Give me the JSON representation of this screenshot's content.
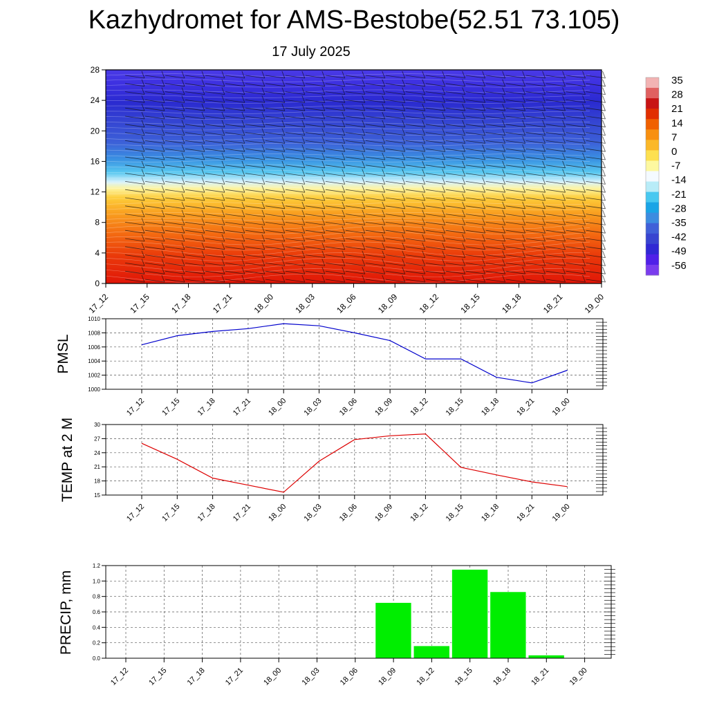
{
  "header": {
    "title": "Kazhydromet for AMS-Bestobe(52.51 73.105)",
    "date": "17 July 2025"
  },
  "time_labels": [
    "17_12",
    "17_15",
    "17_18",
    "17_21",
    "18_00",
    "18_03",
    "18_06",
    "18_09",
    "18_12",
    "18_15",
    "18_18",
    "18_21",
    "19_00"
  ],
  "colors": {
    "pmsl_line": "#0000cc",
    "temp_line": "#dd0000",
    "precip_bar": "#00ee00"
  },
  "chart_data": [
    {
      "type": "heatmap",
      "name": "cross-section",
      "x": [
        "17_12",
        "17_15",
        "17_18",
        "17_21",
        "18_00",
        "18_03",
        "18_06",
        "18_09",
        "18_12",
        "18_15",
        "18_18",
        "18_21",
        "19_00"
      ],
      "yticks": [
        0,
        4,
        8,
        12,
        16,
        20,
        24,
        28
      ],
      "ylim": [
        0,
        28
      ],
      "colorbar": {
        "ticks": [
          35,
          28,
          21,
          14,
          7,
          0,
          -7,
          -14,
          -21,
          -28,
          -35,
          -42,
          -49,
          -56
        ],
        "colors": [
          "#f2b3b3",
          "#e06060",
          "#c81414",
          "#e12e00",
          "#f06000",
          "#f89010",
          "#fbb828",
          "#fde050",
          "#fdf8a0",
          "#f4faff",
          "#b8ecf8",
          "#48c8f0",
          "#1aa4e6",
          "#3c8ce0",
          "#4060d8",
          "#3844d0",
          "#3028d4",
          "#5020e8",
          "#7a3cee"
        ]
      },
      "grid": false
    },
    {
      "type": "line",
      "ylabel": "PMSL",
      "x": [
        "17_12",
        "17_15",
        "17_18",
        "17_21",
        "18_00",
        "18_03",
        "18_06",
        "18_09",
        "18_12",
        "18_15",
        "18_18",
        "18_21",
        "19_00"
      ],
      "values": [
        1006.3,
        1007.6,
        1008.2,
        1008.6,
        1009.3,
        1009.0,
        1008.0,
        1006.9,
        1004.3,
        1004.3,
        1001.7,
        1000.9,
        1002.7
      ],
      "yticks": [
        1000,
        1002,
        1004,
        1006,
        1008,
        1010
      ],
      "ylim": [
        1000,
        1010
      ],
      "grid": true
    },
    {
      "type": "line",
      "ylabel": "TEMP at 2 M",
      "x": [
        "17_12",
        "17_15",
        "17_18",
        "17_21",
        "18_00",
        "18_03",
        "18_06",
        "18_09",
        "18_12",
        "18_15",
        "18_18",
        "18_21",
        "19_00"
      ],
      "values": [
        26.0,
        22.6,
        18.6,
        17.1,
        15.6,
        22.2,
        26.8,
        27.6,
        28.0,
        20.9,
        19.3,
        17.8,
        16.8
      ],
      "yticks": [
        15,
        18,
        21,
        24,
        27,
        30
      ],
      "ylim": [
        15,
        30
      ],
      "grid": true
    },
    {
      "type": "bar",
      "ylabel": "PRECIP, mm",
      "categories": [
        "17_12",
        "17_15",
        "17_18",
        "17_21",
        "18_00",
        "18_03",
        "18_06",
        "18_09",
        "18_12",
        "18_15",
        "18_18",
        "18_21",
        "19_00"
      ],
      "values": [
        0,
        0,
        0,
        0,
        0,
        0,
        0,
        0.72,
        0.16,
        1.15,
        0.86,
        0.04,
        0
      ],
      "ytick_labels": [
        "0.0",
        "0.2",
        "0.4",
        "0.6",
        "0.8",
        "1.0",
        "1.2"
      ],
      "ylim": [
        0,
        1.2
      ],
      "grid": true
    }
  ]
}
